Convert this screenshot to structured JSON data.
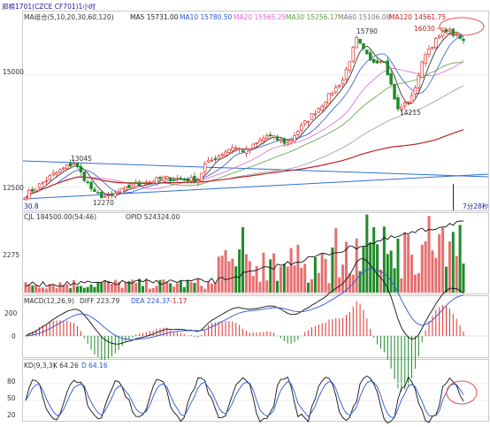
{
  "header": {
    "contract": "郑棉1701(CZCE CF701)1小时",
    "ma_label": "MA组合(5,10,20,30,60,120)",
    "ma5": "MA5 15731.00",
    "ma10": "MA10 15780.50",
    "ma20": "MA20 15565.25",
    "ma30": "MA30 15256.17",
    "ma60": "MA60 15106.08",
    "ma120": "MA120 14561.75"
  },
  "colors": {
    "up": "#e0302c",
    "down": "#1f8a2a",
    "ma5": "#222222",
    "ma10": "#2b55d6",
    "ma20": "#d96ad0",
    "ma30": "#5c9e3c",
    "ma60": "#9a9a9a",
    "ma120": "#c22020",
    "trend": "#2f6fd6",
    "highlight": "#e55050"
  },
  "chart_data": [
    {
      "type": "candlestick",
      "title": "郑棉1701(CZCE CF701)1小时",
      "y_ticks": [
        "15000",
        "12500"
      ],
      "ylim": [
        12000,
        16400
      ],
      "annotations": [
        {
          "text": "13045",
          "value": 13045
        },
        {
          "text": "12270",
          "value": 12270
        },
        {
          "text": "15790",
          "value": 15790
        },
        {
          "text": "14215",
          "value": 14215
        },
        {
          "text": "16030",
          "value": 16030
        }
      ],
      "corner_labels": {
        "left": "30.8",
        "right": "7分28秒"
      },
      "series_names": [
        "MA5",
        "MA10",
        "MA20",
        "MA30",
        "MA60",
        "MA120"
      ],
      "ma_values": [
        15731.0,
        15780.5,
        15565.25,
        15256.17,
        15106.08,
        14561.75
      ],
      "close_keypoints": [
        [
          0,
          12320
        ],
        [
          8,
          12780
        ],
        [
          14,
          13045
        ],
        [
          20,
          12350
        ],
        [
          24,
          12270
        ],
        [
          30,
          12500
        ],
        [
          40,
          12700
        ],
        [
          50,
          12660
        ],
        [
          52,
          13000
        ],
        [
          60,
          13400
        ],
        [
          64,
          13300
        ],
        [
          70,
          13650
        ],
        [
          76,
          13480
        ],
        [
          80,
          13850
        ],
        [
          86,
          14350
        ],
        [
          92,
          14900
        ],
        [
          96,
          15790
        ],
        [
          100,
          15300
        ],
        [
          104,
          15350
        ],
        [
          108,
          14215
        ],
        [
          112,
          14500
        ],
        [
          116,
          15500
        ],
        [
          122,
          16030
        ],
        [
          127,
          15750
        ]
      ]
    },
    {
      "type": "bar+line",
      "title": "CJL",
      "labels": {
        "cjl": "CJL 184500.00(54:46)",
        "opid": "OPID 524324.00"
      },
      "y_ticks": [
        "2275"
      ],
      "series": [
        {
          "name": "OPID"
        },
        {
          "name": "CJL"
        }
      ]
    },
    {
      "type": "bar+line",
      "title": "MACD(12,26,9)",
      "labels": {
        "name": "MACD(12,26,9)",
        "diff": "DIFF 223.79",
        "dea": "DEA 224.37",
        "macd": "-1.17"
      },
      "values": {
        "DIFF": 223.79,
        "DEA": 224.37,
        "MACD": -1.17
      },
      "y_ticks": [
        "200",
        "0"
      ]
    },
    {
      "type": "line",
      "title": "KD(9,3,3)",
      "labels": {
        "name": "KD(9,3,3)",
        "k": "K 64.26",
        "d": "D 64.16"
      },
      "values": {
        "K": 64.26,
        "D": 64.16
      },
      "y_ticks": [
        "80",
        "50",
        "20"
      ]
    }
  ]
}
